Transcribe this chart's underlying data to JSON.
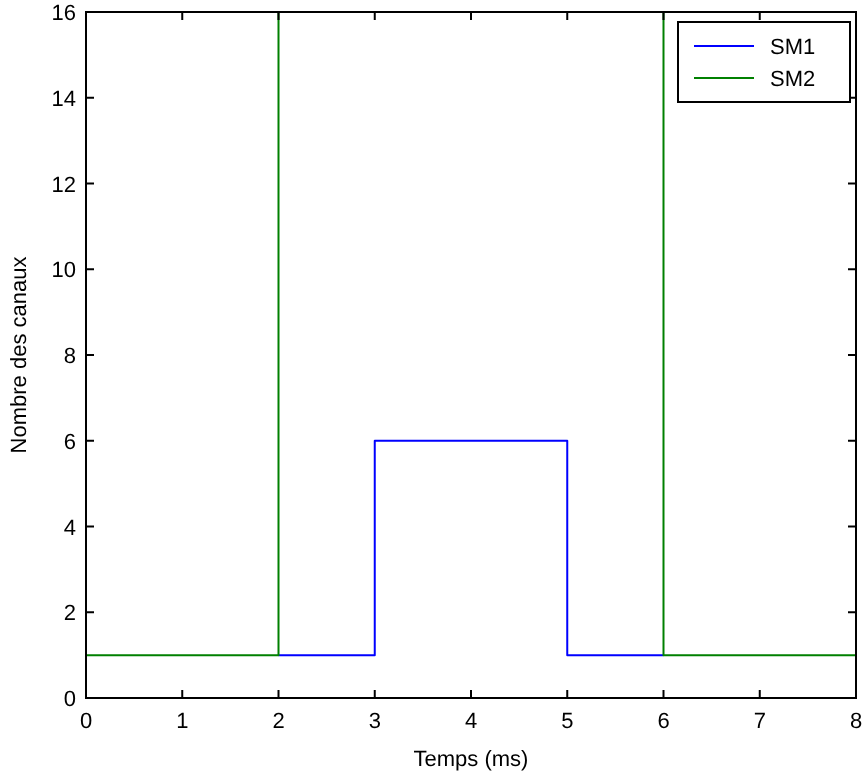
{
  "chart_data": {
    "type": "step",
    "xlabel": "Temps (ms)",
    "ylabel": "Nombre des canaux",
    "xlim": [
      0,
      8
    ],
    "ylim": [
      0,
      16
    ],
    "xticks": [
      0,
      1,
      2,
      3,
      4,
      5,
      6,
      7,
      8
    ],
    "yticks": [
      0,
      2,
      4,
      6,
      8,
      10,
      12,
      14,
      16
    ],
    "grid": false,
    "legend": "top right",
    "series": [
      {
        "name": "SM1",
        "color": "#0000ff",
        "x": [
          2,
          3,
          5,
          6
        ],
        "values": [
          1,
          6,
          1,
          1
        ]
      },
      {
        "name": "SM2",
        "color": "#008000",
        "x": [
          0,
          2,
          6,
          8
        ],
        "values": [
          1,
          16,
          1,
          1
        ]
      }
    ]
  }
}
